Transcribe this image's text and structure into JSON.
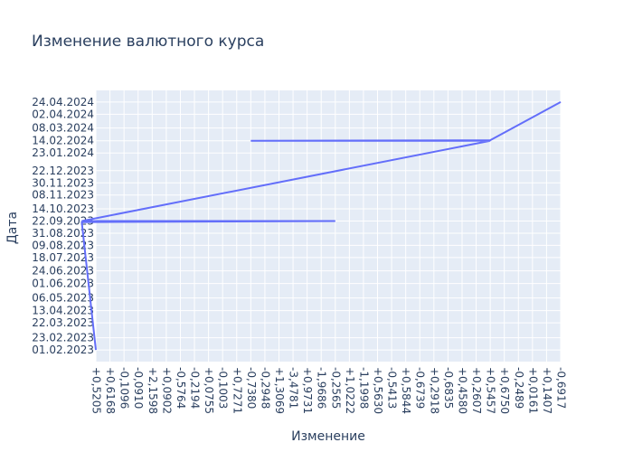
{
  "chart_data": {
    "type": "line",
    "title": "Изменение валютного курса",
    "xlabel": "Изменение",
    "ylabel": "Дата",
    "x_categories": [
      "+0,5205",
      "+0,6168",
      "-0,1096",
      "-0,0910",
      "+2,1598",
      "+0,0902",
      "-0,5764",
      "-0,2194",
      "+0,0755",
      "-0,1003",
      "+0,7271",
      "-0,7380",
      "-0,2948",
      "+1,3069",
      "-3,4781",
      "+0,9731",
      "-1,9686",
      "-0,2565",
      "+1,0222",
      "-1,1998",
      "+0,5630",
      "-0,5413",
      "+0,5844",
      "-0,6739",
      "+0,2918",
      "-0,6835",
      "+0,4580",
      "+0,2607",
      "+0,5457",
      "+0,6750",
      "-0,2489",
      "+0,0161",
      "+0,1407",
      "-0,6917"
    ],
    "y_tick_labels": [
      "01.02.2023",
      "23.02.2023",
      "22.03.2023",
      "13.04.2023",
      "06.05.2023",
      "01.06.2023",
      "24.06.2023",
      "18.07.2023",
      "09.08.2023",
      "31.08.2023",
      "22.09.2023",
      "14.10.2023",
      "08.11.2023",
      "30.11.2023",
      "22.12.2023",
      "23.01.2024",
      "14.02.2024",
      "08.03.2024",
      "02.04.2024",
      "24.04.2024"
    ],
    "series": [
      {
        "color": "#636efa",
        "x": [
          "+0,5205",
          "+0,3696",
          "-0,2565",
          "+0,3696",
          "+0,5457",
          "-0,7380",
          "+0,5457",
          "-0,6917"
        ],
        "y": [
          "01.02.2023",
          "20.09.2023",
          "22.09.2023",
          "22.09.2023",
          "14.02.2024",
          "14.02.2024",
          "15.02.2024",
          "24.04.2024"
        ]
      }
    ],
    "plot_bgcolor": "#e5ecf6",
    "gridcolor": "#ffffff",
    "grid": true,
    "legend": "none"
  }
}
